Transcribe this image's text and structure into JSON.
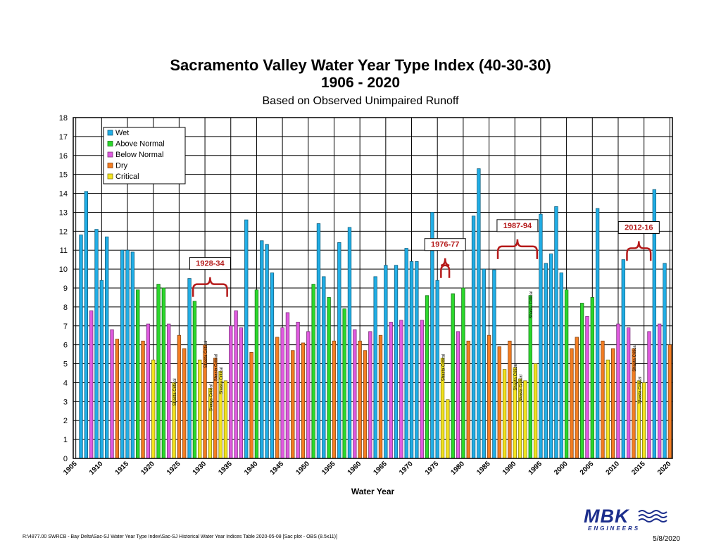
{
  "header": {
    "title": "Sacramento Valley Water Year Type Index (40-30-30)",
    "subtitle": "1906 - 2020",
    "note": "Based on Observed Unimpaired Runoff"
  },
  "footer": {
    "path": "R:\\4877.00  SWRCB - Bay Delta\\Sac-SJ Water Year Type Index\\Sac-SJ Historical Water Year Indices Table 2020-05-08  [Sac plot - OBS (8.5x11)]",
    "date": "5/8/2020"
  },
  "logo": {
    "text": "MBK",
    "sub": "ENGINEERS"
  },
  "colors": {
    "Wet": "#21aee6",
    "Above Normal": "#2cd82c",
    "Below Normal": "#e05ae0",
    "Dry": "#f37d22",
    "Critical": "#f3e31f"
  },
  "chart_data": {
    "type": "bar",
    "xlabel": "Water Year",
    "ylabel": "",
    "ylim": [
      0,
      18
    ],
    "yticks": [
      0,
      1,
      2,
      3,
      4,
      5,
      6,
      7,
      8,
      9,
      10,
      11,
      12,
      13,
      14,
      15,
      16,
      17,
      18
    ],
    "xlim": [
      1905,
      2020
    ],
    "xticks": [
      "1905",
      "1910",
      "1915",
      "1920",
      "1925",
      "1930",
      "1935",
      "1940",
      "1945",
      "1950",
      "1955",
      "1960",
      "1965",
      "1970",
      "1975",
      "1980",
      "1985",
      "1990",
      "1995",
      "2000",
      "2005",
      "2010",
      "2015",
      "2020"
    ],
    "grid": true,
    "legend": {
      "placement": "top-left",
      "entries": [
        "Wet",
        "Above Normal",
        "Below Normal",
        "Dry",
        "Critical"
      ]
    },
    "bars": [
      {
        "year": 1906,
        "value": 11.8,
        "type": "Wet"
      },
      {
        "year": 1907,
        "value": 14.1,
        "type": "Wet"
      },
      {
        "year": 1908,
        "value": 7.8,
        "type": "Below Normal"
      },
      {
        "year": 1909,
        "value": 12.1,
        "type": "Wet"
      },
      {
        "year": 1910,
        "value": 9.4,
        "type": "Wet"
      },
      {
        "year": 1911,
        "value": 11.7,
        "type": "Wet"
      },
      {
        "year": 1912,
        "value": 6.8,
        "type": "Below Normal"
      },
      {
        "year": 1913,
        "value": 6.3,
        "type": "Dry"
      },
      {
        "year": 1914,
        "value": 11.0,
        "type": "Wet"
      },
      {
        "year": 1915,
        "value": 11.0,
        "type": "Wet"
      },
      {
        "year": 1916,
        "value": 10.9,
        "type": "Wet"
      },
      {
        "year": 1917,
        "value": 8.9,
        "type": "Above Normal"
      },
      {
        "year": 1918,
        "value": 6.2,
        "type": "Dry"
      },
      {
        "year": 1919,
        "value": 7.1,
        "type": "Below Normal"
      },
      {
        "year": 1920,
        "value": 5.2,
        "type": "Critical"
      },
      {
        "year": 1921,
        "value": 9.2,
        "type": "Above Normal"
      },
      {
        "year": 1922,
        "value": 9.0,
        "type": "Above Normal"
      },
      {
        "year": 1923,
        "value": 7.1,
        "type": "Below Normal"
      },
      {
        "year": 1924,
        "value": 4.0,
        "type": "Critical"
      },
      {
        "year": 1925,
        "value": 6.5,
        "type": "Dry"
      },
      {
        "year": 1926,
        "value": 5.8,
        "type": "Dry"
      },
      {
        "year": 1927,
        "value": 9.5,
        "type": "Wet"
      },
      {
        "year": 1928,
        "value": 8.3,
        "type": "Above Normal"
      },
      {
        "year": 1929,
        "value": 5.2,
        "type": "Critical"
      },
      {
        "year": 1930,
        "value": 6.0,
        "type": "Dry"
      },
      {
        "year": 1931,
        "value": 3.7,
        "type": "Critical"
      },
      {
        "year": 1932,
        "value": 5.3,
        "type": "Dry"
      },
      {
        "year": 1933,
        "value": 4.6,
        "type": "Critical"
      },
      {
        "year": 1934,
        "value": 4.1,
        "type": "Critical"
      },
      {
        "year": 1935,
        "value": 7.0,
        "type": "Below Normal"
      },
      {
        "year": 1936,
        "value": 7.8,
        "type": "Below Normal"
      },
      {
        "year": 1937,
        "value": 6.9,
        "type": "Below Normal"
      },
      {
        "year": 1938,
        "value": 12.6,
        "type": "Wet"
      },
      {
        "year": 1939,
        "value": 5.6,
        "type": "Dry"
      },
      {
        "year": 1940,
        "value": 8.9,
        "type": "Above Normal"
      },
      {
        "year": 1941,
        "value": 11.5,
        "type": "Wet"
      },
      {
        "year": 1942,
        "value": 11.3,
        "type": "Wet"
      },
      {
        "year": 1943,
        "value": 9.8,
        "type": "Wet"
      },
      {
        "year": 1944,
        "value": 6.4,
        "type": "Dry"
      },
      {
        "year": 1945,
        "value": 6.9,
        "type": "Below Normal"
      },
      {
        "year": 1946,
        "value": 7.7,
        "type": "Below Normal"
      },
      {
        "year": 1947,
        "value": 5.7,
        "type": "Dry"
      },
      {
        "year": 1948,
        "value": 7.2,
        "type": "Below Normal"
      },
      {
        "year": 1949,
        "value": 6.1,
        "type": "Dry"
      },
      {
        "year": 1950,
        "value": 6.7,
        "type": "Below Normal"
      },
      {
        "year": 1951,
        "value": 9.2,
        "type": "Above Normal"
      },
      {
        "year": 1952,
        "value": 12.4,
        "type": "Wet"
      },
      {
        "year": 1953,
        "value": 9.6,
        "type": "Wet"
      },
      {
        "year": 1954,
        "value": 8.5,
        "type": "Above Normal"
      },
      {
        "year": 1955,
        "value": 6.2,
        "type": "Dry"
      },
      {
        "year": 1956,
        "value": 11.4,
        "type": "Wet"
      },
      {
        "year": 1957,
        "value": 7.9,
        "type": "Above Normal"
      },
      {
        "year": 1958,
        "value": 12.2,
        "type": "Wet"
      },
      {
        "year": 1959,
        "value": 6.8,
        "type": "Below Normal"
      },
      {
        "year": 1960,
        "value": 6.2,
        "type": "Dry"
      },
      {
        "year": 1961,
        "value": 5.7,
        "type": "Dry"
      },
      {
        "year": 1962,
        "value": 6.7,
        "type": "Below Normal"
      },
      {
        "year": 1963,
        "value": 9.6,
        "type": "Wet"
      },
      {
        "year": 1964,
        "value": 6.5,
        "type": "Dry"
      },
      {
        "year": 1965,
        "value": 10.2,
        "type": "Wet"
      },
      {
        "year": 1966,
        "value": 7.2,
        "type": "Below Normal"
      },
      {
        "year": 1967,
        "value": 10.2,
        "type": "Wet"
      },
      {
        "year": 1968,
        "value": 7.3,
        "type": "Below Normal"
      },
      {
        "year": 1969,
        "value": 11.1,
        "type": "Wet"
      },
      {
        "year": 1970,
        "value": 10.4,
        "type": "Wet"
      },
      {
        "year": 1971,
        "value": 10.4,
        "type": "Wet"
      },
      {
        "year": 1972,
        "value": 7.3,
        "type": "Below Normal"
      },
      {
        "year": 1973,
        "value": 8.6,
        "type": "Above Normal"
      },
      {
        "year": 1974,
        "value": 13.0,
        "type": "Wet"
      },
      {
        "year": 1975,
        "value": 9.4,
        "type": "Wet"
      },
      {
        "year": 1976,
        "value": 5.3,
        "type": "Critical"
      },
      {
        "year": 1977,
        "value": 3.1,
        "type": "Critical"
      },
      {
        "year": 1978,
        "value": 8.7,
        "type": "Above Normal"
      },
      {
        "year": 1979,
        "value": 6.7,
        "type": "Below Normal"
      },
      {
        "year": 1980,
        "value": 9.0,
        "type": "Above Normal"
      },
      {
        "year": 1981,
        "value": 6.2,
        "type": "Dry"
      },
      {
        "year": 1982,
        "value": 12.8,
        "type": "Wet"
      },
      {
        "year": 1983,
        "value": 15.3,
        "type": "Wet"
      },
      {
        "year": 1984,
        "value": 10.0,
        "type": "Wet"
      },
      {
        "year": 1985,
        "value": 6.5,
        "type": "Dry"
      },
      {
        "year": 1986,
        "value": 9.96,
        "type": "Wet"
      },
      {
        "year": 1987,
        "value": 5.9,
        "type": "Dry"
      },
      {
        "year": 1988,
        "value": 4.7,
        "type": "Critical"
      },
      {
        "year": 1989,
        "value": 6.2,
        "type": "Dry"
      },
      {
        "year": 1990,
        "value": 4.8,
        "type": "Critical"
      },
      {
        "year": 1991,
        "value": 4.2,
        "type": "Critical"
      },
      {
        "year": 1992,
        "value": 4.1,
        "type": "Critical"
      },
      {
        "year": 1993,
        "value": 8.6,
        "type": "Above Normal"
      },
      {
        "year": 1994,
        "value": 5.0,
        "type": "Critical"
      },
      {
        "year": 1995,
        "value": 12.9,
        "type": "Wet"
      },
      {
        "year": 1996,
        "value": 10.3,
        "type": "Wet"
      },
      {
        "year": 1997,
        "value": 10.8,
        "type": "Wet"
      },
      {
        "year": 1998,
        "value": 13.3,
        "type": "Wet"
      },
      {
        "year": 1999,
        "value": 9.8,
        "type": "Wet"
      },
      {
        "year": 2000,
        "value": 8.9,
        "type": "Above Normal"
      },
      {
        "year": 2001,
        "value": 5.8,
        "type": "Dry"
      },
      {
        "year": 2002,
        "value": 6.4,
        "type": "Dry"
      },
      {
        "year": 2003,
        "value": 8.2,
        "type": "Above Normal"
      },
      {
        "year": 2004,
        "value": 7.5,
        "type": "Below Normal"
      },
      {
        "year": 2005,
        "value": 8.5,
        "type": "Above Normal"
      },
      {
        "year": 2006,
        "value": 13.2,
        "type": "Wet"
      },
      {
        "year": 2007,
        "value": 6.2,
        "type": "Dry"
      },
      {
        "year": 2008,
        "value": 5.2,
        "type": "Critical"
      },
      {
        "year": 2009,
        "value": 5.8,
        "type": "Dry"
      },
      {
        "year": 2010,
        "value": 7.1,
        "type": "Below Normal"
      },
      {
        "year": 2011,
        "value": 10.5,
        "type": "Wet"
      },
      {
        "year": 2012,
        "value": 6.9,
        "type": "Below Normal"
      },
      {
        "year": 2013,
        "value": 5.8,
        "type": "Dry"
      },
      {
        "year": 2014,
        "value": 4.1,
        "type": "Critical"
      },
      {
        "year": 2015,
        "value": 4.0,
        "type": "Critical"
      },
      {
        "year": 2016,
        "value": 6.7,
        "type": "Below Normal"
      },
      {
        "year": 2017,
        "value": 14.2,
        "type": "Wet"
      },
      {
        "year": 2018,
        "value": 7.1,
        "type": "Below Normal"
      },
      {
        "year": 2019,
        "value": 10.3,
        "type": "Wet"
      },
      {
        "year": 2020,
        "value": 6.0,
        "type": "Dry"
      }
    ],
    "droughts": [
      {
        "label": "1928-34",
        "from": 1928,
        "to": 1934,
        "level": 9.2
      },
      {
        "label": "1976-77",
        "from": 1976,
        "to": 1977,
        "level": 10.2
      },
      {
        "label": "1987-94",
        "from": 1987,
        "to": 1994,
        "level": 11.2
      },
      {
        "label": "2012-16",
        "from": 2012,
        "to": 2016,
        "level": 11.1
      }
    ],
    "annotations": [
      {
        "year": 1924,
        "text": "Shasta Critical"
      },
      {
        "year": 1930,
        "text": "Shasta Critical"
      },
      {
        "year": 1931,
        "text": "Shasta Critical"
      },
      {
        "year": 1932,
        "text": "Shasta Critical"
      },
      {
        "year": 1933,
        "text": "Shasta Critical"
      },
      {
        "year": 1976,
        "text": "Shasta Critical"
      },
      {
        "year": 1990,
        "text": "Shasta Critical"
      },
      {
        "year": 1991,
        "text": "Shasta Critical"
      },
      {
        "year": 1993,
        "text": "Shasta Critical"
      },
      {
        "year": 2013,
        "text": "Shasta Critical"
      },
      {
        "year": 2014,
        "text": "Shasta Critical"
      }
    ]
  }
}
